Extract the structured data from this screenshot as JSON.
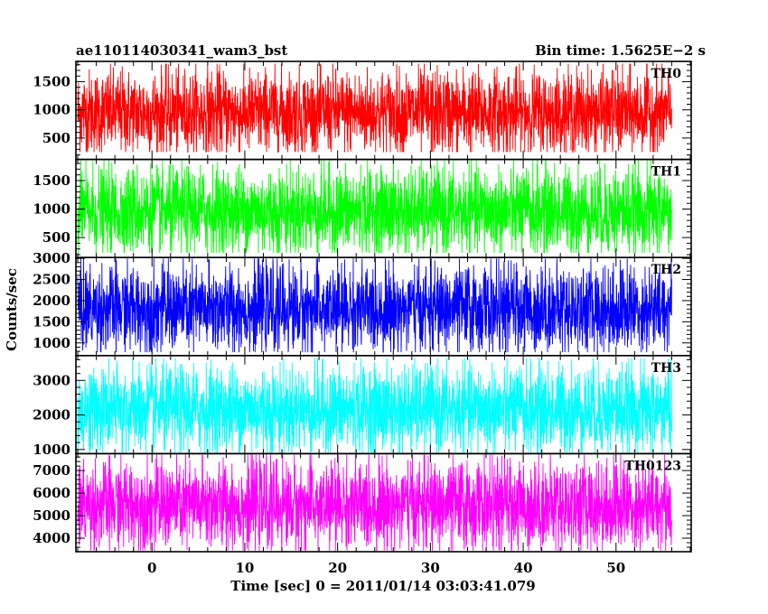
{
  "header": {
    "left_title": "ae110114030341_wam3_bst",
    "right_title": "Bin time: 1.5625E−2 s"
  },
  "chart_data": {
    "type": "line",
    "xlabel": "Time [sec] 0 = 2011/01/14 03:03:41.079",
    "ylabel": "Counts/sec",
    "xlim": [
      -8.2,
      58.1
    ],
    "x_ticks": [
      0,
      10,
      20,
      30,
      40,
      50
    ],
    "x_tick_labels": [
      "0",
      "10",
      "20",
      "30",
      "40",
      "50"
    ],
    "x_range_data": [
      -8,
      56
    ],
    "bin_time_sec": 0.015625,
    "panels": [
      {
        "name": "TH0",
        "color": "#ff0000",
        "ylim": [
          120,
          1860
        ],
        "y_ticks": [
          500,
          1000,
          1500
        ],
        "y_tick_labels": [
          "500",
          "1000",
          "1500"
        ],
        "envelope": {
          "min": 250,
          "max": 1820,
          "mean": 950,
          "sigma": 380
        }
      },
      {
        "name": "TH1",
        "color": "#00ff00",
        "ylim": [
          150,
          1870
        ],
        "y_ticks": [
          500,
          1000,
          1500
        ],
        "y_tick_labels": [
          "500",
          "1000",
          "1500"
        ],
        "envelope": {
          "min": 230,
          "max": 1860,
          "mean": 960,
          "sigma": 390
        }
      },
      {
        "name": "TH2",
        "color": "#0000ff",
        "ylim": [
          700,
          3020
        ],
        "y_ticks": [
          1000,
          1500,
          2000,
          2500,
          3000
        ],
        "y_tick_labels": [
          "1000",
          "1500",
          "2000",
          "2500",
          "3000"
        ],
        "envelope": {
          "min": 780,
          "max": 3000,
          "mean": 1800,
          "sigma": 520
        }
      },
      {
        "name": "TH3",
        "color": "#00ffff",
        "ylim": [
          880,
          3720
        ],
        "y_ticks": [
          1000,
          2000,
          3000
        ],
        "y_tick_labels": [
          "1000",
          "2000",
          "3000"
        ],
        "envelope": {
          "min": 900,
          "max": 3650,
          "mean": 2150,
          "sigma": 650
        }
      },
      {
        "name": "TH0123",
        "color": "#ff00ff",
        "ylim": [
          3400,
          7750
        ],
        "y_ticks": [
          4000,
          5000,
          6000,
          7000
        ],
        "y_tick_labels": [
          "4000",
          "5000",
          "6000",
          "7000"
        ],
        "envelope": {
          "min": 3450,
          "max": 7700,
          "mean": 5450,
          "sigma": 1000
        }
      }
    ]
  }
}
